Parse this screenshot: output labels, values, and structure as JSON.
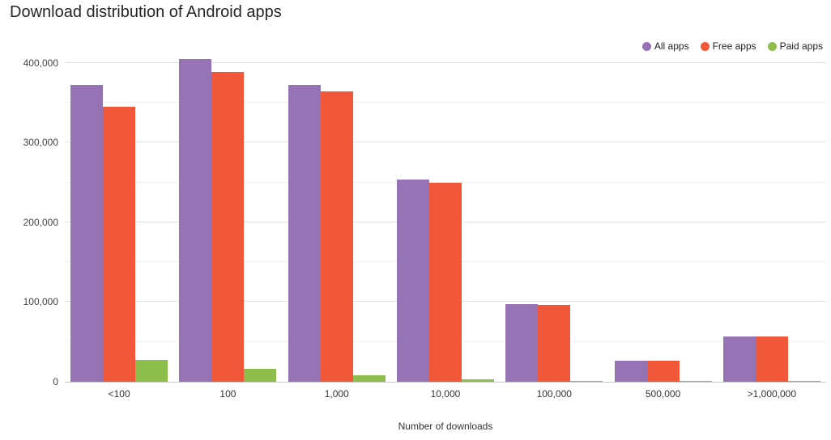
{
  "chart_data": {
    "type": "bar",
    "title": "Download distribution of Android apps",
    "xlabel": "Number of downloads",
    "ylabel": "",
    "categories": [
      "<100",
      "100",
      "1,000",
      "10,000",
      "100,000",
      "500,000",
      ">1,000,000"
    ],
    "series": [
      {
        "name": "All apps",
        "color": "#9673b5",
        "values": [
          372000,
          405000,
          372000,
          254000,
          97000,
          26000,
          57000
        ]
      },
      {
        "name": "Free apps",
        "color": "#f1583a",
        "values": [
          345000,
          389000,
          364000,
          250000,
          96000,
          26000,
          57000
        ]
      },
      {
        "name": "Paid apps",
        "color": "#8dbd4a",
        "values": [
          27000,
          16000,
          8000,
          3000,
          1200,
          500,
          500
        ]
      }
    ],
    "ylim": [
      0,
      420000
    ],
    "yticks": [
      0,
      100000,
      200000,
      300000,
      400000
    ],
    "gridline_interval": 50000,
    "grid": true,
    "legend_position": "top-right"
  }
}
